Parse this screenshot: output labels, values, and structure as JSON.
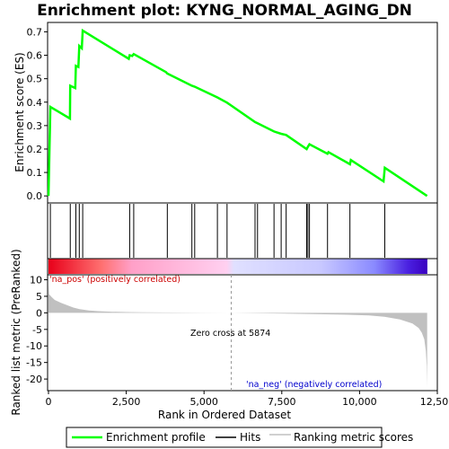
{
  "chart_data": [
    {
      "type": "line",
      "title": "Enrichment plot: KYNG_NORMAL_AGING_DN",
      "ylabel": "Enrichment score (ES)",
      "xlim": [
        0,
        12500
      ],
      "ylim": [
        -0.03,
        0.74
      ],
      "yticks": [
        "0.0",
        "0.1",
        "0.2",
        "0.3",
        "0.4",
        "0.5",
        "0.6",
        "0.7"
      ],
      "ytick_values": [
        0,
        0.1,
        0.2,
        0.3,
        0.4,
        0.5,
        0.6,
        0.7
      ],
      "grid": false,
      "series": [
        {
          "name": "Enrichment profile",
          "color": "#00ff00",
          "x": [
            0,
            60,
            690,
            700,
            860,
            880,
            960,
            990,
            1070,
            1100,
            2580,
            2610,
            2690,
            2740,
            3780,
            3820,
            4610,
            4700,
            5430,
            5740,
            6640,
            6720,
            7250,
            7480,
            7640,
            8300,
            8340,
            8390,
            8970,
            9000,
            9690,
            9720,
            10770,
            10810,
            12170
          ],
          "y": [
            0.0,
            0.38,
            0.33,
            0.47,
            0.46,
            0.555,
            0.55,
            0.64,
            0.63,
            0.705,
            0.585,
            0.6,
            0.597,
            0.605,
            0.528,
            0.522,
            0.47,
            0.466,
            0.42,
            0.398,
            0.315,
            0.31,
            0.275,
            0.265,
            0.26,
            0.2,
            0.21,
            0.22,
            0.18,
            0.187,
            0.135,
            0.153,
            0.062,
            0.12,
            0.0
          ]
        }
      ]
    },
    {
      "type": "scatter",
      "series": [
        {
          "name": "Hits",
          "x": [
            60,
            700,
            880,
            990,
            1100,
            2610,
            2740,
            3820,
            4610,
            4700,
            5430,
            5740,
            6640,
            6720,
            7250,
            7480,
            7640,
            8300,
            8340,
            8390,
            8970,
            9690,
            10810
          ]
        }
      ]
    },
    {
      "type": "area",
      "xlabel": "Rank in Ordered Dataset",
      "ylabel": "Ranked list metric (PreRanked)",
      "xlim": [
        0,
        12500
      ],
      "ylim": [
        -23.5,
        11.5
      ],
      "xticks": [
        "0",
        "2,500",
        "5,000",
        "7,500",
        "10,000",
        "12,500"
      ],
      "xtick_values": [
        0,
        2500,
        5000,
        7500,
        10000,
        12500
      ],
      "yticks": [
        "10",
        "5",
        "0",
        "-5",
        "-10",
        "-15",
        "-20"
      ],
      "ytick_values": [
        10,
        5,
        0,
        -5,
        -10,
        -15,
        -20
      ],
      "series": [
        {
          "name": "Ranking metric scores",
          "x": [
            0,
            20,
            100,
            200,
            400,
            600,
            800,
            1000,
            1300,
            1600,
            2000,
            2500,
            3000,
            4000,
            5000,
            5874,
            7000,
            8500,
            9500,
            10300,
            10800,
            11300,
            11700,
            11900,
            12000,
            12080,
            12130,
            12160,
            12175
          ],
          "y": [
            9.0,
            5.6,
            4.8,
            3.9,
            3.0,
            2.3,
            1.6,
            1.1,
            0.7,
            0.5,
            0.35,
            0.25,
            0.17,
            0.1,
            0.04,
            0,
            -0.15,
            -0.35,
            -0.55,
            -0.8,
            -1.2,
            -2.0,
            -3.2,
            -4.6,
            -6.0,
            -8.0,
            -11.5,
            -16.0,
            -22.5
          ]
        }
      ],
      "annotations": {
        "pos_label": "'na_pos' (positively correlated)",
        "neg_label": "'na_neg' (negatively correlated)",
        "zero_cross": "Zero cross at 5874"
      },
      "zero_cross_x": 5874
    }
  ],
  "colors": {
    "profile": "#00ff00",
    "hits": "#000000",
    "metric": "#c0c0c0",
    "pos_text": "#cc0000",
    "neg_text": "#0000cc"
  },
  "legend": {
    "placement": "bottom",
    "items": [
      "Enrichment profile",
      "Hits",
      "Ranking metric scores"
    ]
  }
}
